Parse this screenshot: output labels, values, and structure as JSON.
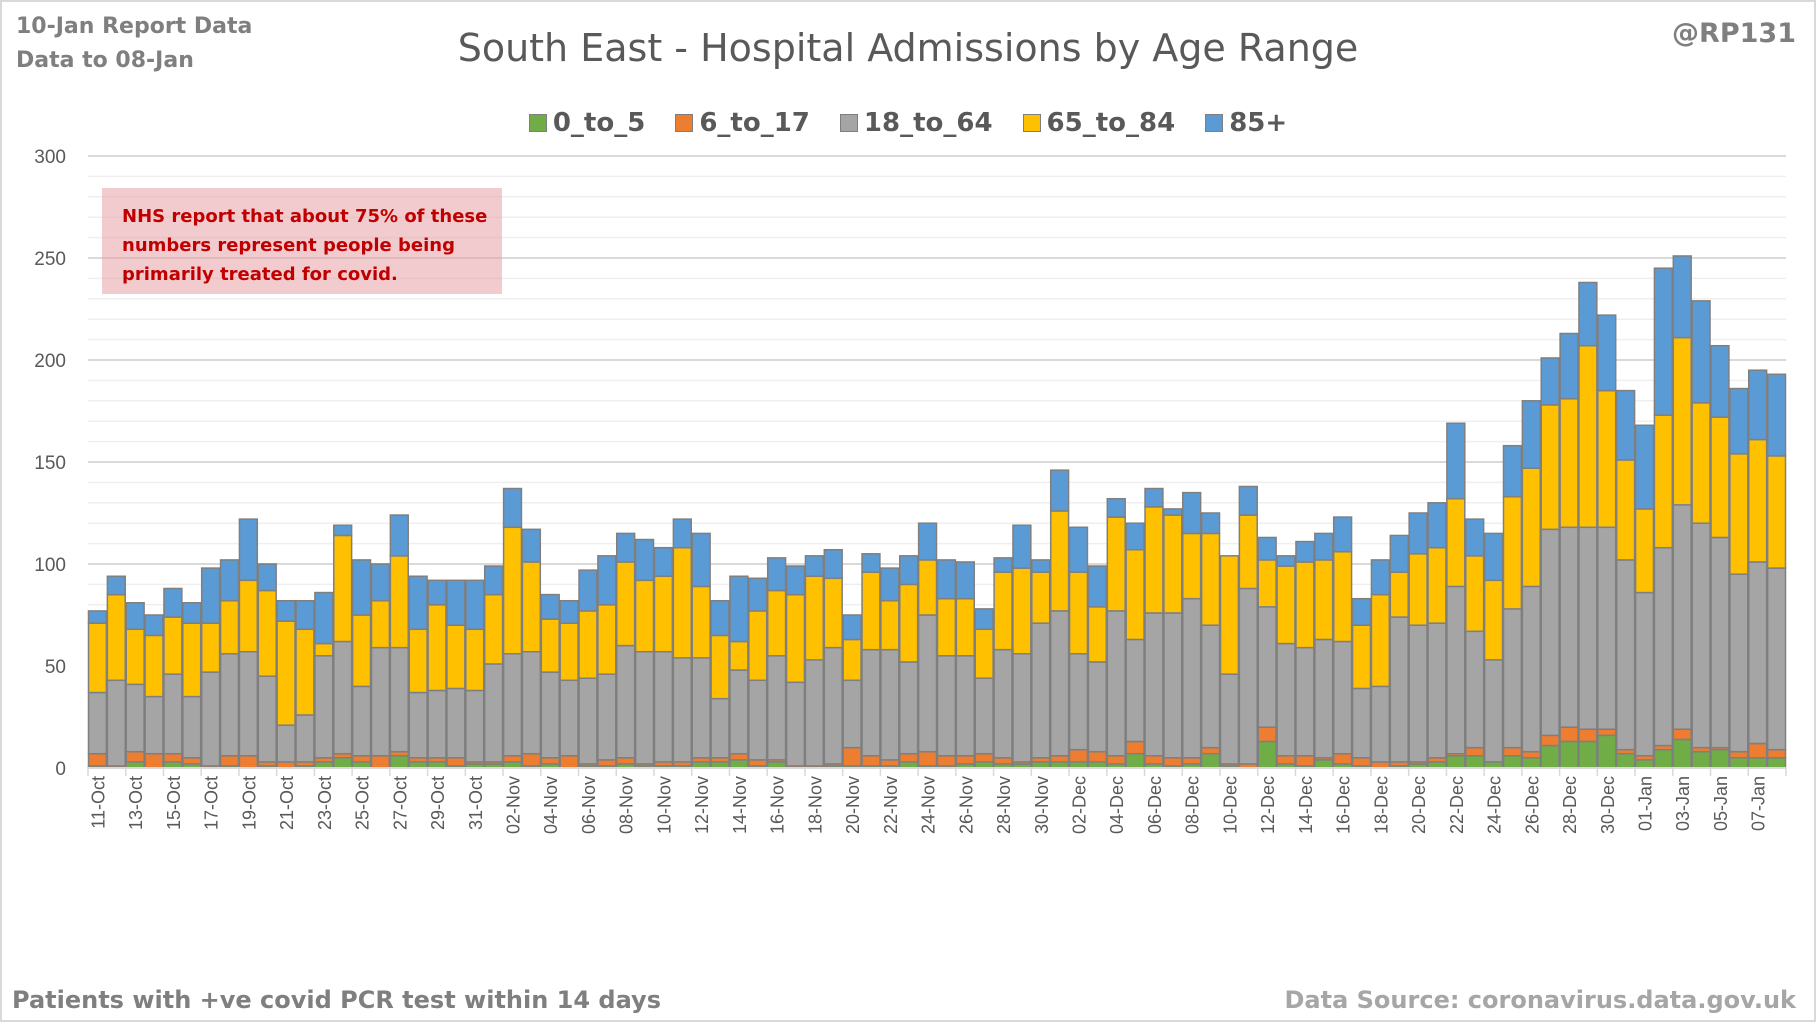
{
  "header": {
    "report_line": "10-Jan Report Data",
    "data_to_line": "Data to 08-Jan",
    "handle": "@RP131"
  },
  "annotation": {
    "lines": [
      "NHS report that about 75% of these",
      "numbers represent people being",
      "primarily treated for covid."
    ]
  },
  "footer": {
    "left": "Patients with  +ve covid PCR test within 14 days",
    "right": "Data Source: coronavirus.data.gov.uk"
  },
  "colors": {
    "0_to_5": "#70ad47",
    "6_to_17": "#ed7d31",
    "18_to_64": "#a5a5a5",
    "65_to_84": "#ffc000",
    "85+": "#5b9bd5"
  },
  "chart_data": {
    "type": "bar",
    "stacked": true,
    "title": "South East - Hospital Admissions by Age Range",
    "xlabel": "",
    "ylabel": "",
    "ylim": [
      0,
      300
    ],
    "yticks": [
      0,
      50,
      100,
      150,
      200,
      250,
      300
    ],
    "grid": true,
    "legend_position": "top",
    "categories": [
      "11-Oct",
      "12-Oct",
      "13-Oct",
      "14-Oct",
      "15-Oct",
      "16-Oct",
      "17-Oct",
      "18-Oct",
      "19-Oct",
      "20-Oct",
      "21-Oct",
      "22-Oct",
      "23-Oct",
      "24-Oct",
      "25-Oct",
      "26-Oct",
      "27-Oct",
      "28-Oct",
      "29-Oct",
      "30-Oct",
      "31-Oct",
      "01-Nov",
      "02-Nov",
      "03-Nov",
      "04-Nov",
      "05-Nov",
      "06-Nov",
      "07-Nov",
      "08-Nov",
      "09-Nov",
      "10-Nov",
      "11-Nov",
      "12-Nov",
      "13-Nov",
      "14-Nov",
      "15-Nov",
      "16-Nov",
      "17-Nov",
      "18-Nov",
      "19-Nov",
      "20-Nov",
      "21-Nov",
      "22-Nov",
      "23-Nov",
      "24-Nov",
      "25-Nov",
      "26-Nov",
      "27-Nov",
      "28-Nov",
      "29-Nov",
      "30-Nov",
      "01-Dec",
      "02-Dec",
      "03-Dec",
      "04-Dec",
      "05-Dec",
      "06-Dec",
      "07-Dec",
      "08-Dec",
      "09-Dec",
      "10-Dec",
      "11-Dec",
      "12-Dec",
      "13-Dec",
      "14-Dec",
      "15-Dec",
      "16-Dec",
      "17-Dec",
      "18-Dec",
      "19-Dec",
      "20-Dec",
      "21-Dec",
      "22-Dec",
      "23-Dec",
      "24-Dec",
      "25-Dec",
      "26-Dec",
      "27-Dec",
      "28-Dec",
      "29-Dec",
      "30-Dec",
      "31-Dec",
      "01-Jan",
      "02-Jan",
      "03-Jan",
      "04-Jan",
      "05-Jan",
      "06-Jan",
      "07-Jan",
      "08-Jan"
    ],
    "tick_labels": [
      "11-Oct",
      "13-Oct",
      "15-Oct",
      "17-Oct",
      "19-Oct",
      "21-Oct",
      "23-Oct",
      "25-Oct",
      "27-Oct",
      "29-Oct",
      "31-Oct",
      "02-Nov",
      "04-Nov",
      "06-Nov",
      "08-Nov",
      "10-Nov",
      "12-Nov",
      "14-Nov",
      "16-Nov",
      "18-Nov",
      "20-Nov",
      "22-Nov",
      "24-Nov",
      "26-Nov",
      "28-Nov",
      "30-Nov",
      "02-Dec",
      "04-Dec",
      "06-Dec",
      "08-Dec",
      "10-Dec",
      "12-Dec",
      "14-Dec",
      "16-Dec",
      "18-Dec",
      "20-Dec",
      "22-Dec",
      "24-Dec",
      "26-Dec",
      "28-Dec",
      "30-Dec",
      "01-Jan",
      "03-Jan",
      "05-Jan",
      "07-Jan"
    ],
    "series": [
      {
        "name": "0_to_5",
        "values": [
          1,
          0,
          3,
          0,
          3,
          2,
          0,
          1,
          0,
          1,
          0,
          1,
          3,
          5,
          3,
          0,
          6,
          3,
          3,
          1,
          2,
          2,
          3,
          1,
          2,
          0,
          1,
          1,
          2,
          1,
          1,
          1,
          3,
          3,
          4,
          1,
          3,
          0,
          0,
          1,
          1,
          1,
          1,
          3,
          1,
          1,
          2,
          3,
          2,
          2,
          3,
          3,
          3,
          3,
          2,
          7,
          2,
          1,
          2,
          7,
          1,
          0,
          13,
          2,
          1,
          4,
          2,
          1,
          0,
          1,
          2,
          3,
          6,
          6,
          3,
          6,
          5,
          11,
          13,
          13,
          16,
          7,
          4,
          9,
          14,
          8,
          9,
          5,
          5,
          5
        ]
      },
      {
        "name": "6_to_17",
        "values": [
          6,
          1,
          5,
          7,
          4,
          3,
          1,
          5,
          6,
          2,
          3,
          2,
          2,
          2,
          3,
          6,
          2,
          2,
          2,
          4,
          1,
          1,
          3,
          6,
          3,
          6,
          1,
          3,
          3,
          1,
          2,
          2,
          2,
          2,
          3,
          3,
          1,
          1,
          1,
          1,
          9,
          5,
          3,
          4,
          7,
          5,
          4,
          4,
          3,
          1,
          2,
          3,
          6,
          5,
          4,
          6,
          4,
          4,
          3,
          3,
          1,
          2,
          7,
          4,
          5,
          1,
          5,
          4,
          3,
          2,
          1,
          2,
          1,
          4,
          0,
          4,
          3,
          5,
          7,
          6,
          3,
          2,
          2,
          2,
          5,
          2,
          1,
          3,
          7,
          4
        ]
      },
      {
        "name": "18_to_64",
        "values": [
          30,
          42,
          33,
          28,
          39,
          30,
          46,
          50,
          51,
          42,
          18,
          23,
          50,
          55,
          34,
          53,
          51,
          32,
          33,
          34,
          35,
          48,
          50,
          50,
          42,
          37,
          42,
          42,
          55,
          55,
          54,
          51,
          49,
          29,
          41,
          39,
          51,
          41,
          52,
          57,
          33,
          52,
          54,
          45,
          67,
          49,
          49,
          37,
          53,
          53,
          66,
          71,
          47,
          44,
          71,
          50,
          70,
          71,
          78,
          60,
          44,
          86,
          59,
          55,
          53,
          58,
          55,
          34,
          37,
          71,
          67,
          66,
          82,
          57,
          50,
          68,
          81,
          101,
          98,
          99,
          99,
          93,
          80,
          97,
          110,
          110,
          103,
          87,
          89,
          89
        ]
      },
      {
        "name": "65_to_84",
        "values": [
          34,
          42,
          27,
          30,
          28,
          36,
          24,
          26,
          35,
          42,
          51,
          42,
          6,
          52,
          35,
          23,
          45,
          31,
          42,
          31,
          30,
          34,
          62,
          44,
          26,
          28,
          33,
          34,
          41,
          35,
          37,
          54,
          35,
          31,
          14,
          34,
          32,
          43,
          41,
          34,
          20,
          38,
          24,
          38,
          27,
          28,
          28,
          24,
          38,
          42,
          25,
          49,
          40,
          27,
          46,
          44,
          52,
          48,
          32,
          45,
          58,
          36,
          23,
          38,
          42,
          39,
          44,
          31,
          45,
          22,
          35,
          37,
          43,
          37,
          39,
          55,
          58,
          61,
          63,
          89,
          67,
          49,
          41,
          65,
          82,
          59,
          59,
          59,
          60,
          55
        ]
      },
      {
        "name": "85+",
        "values": [
          6,
          9,
          13,
          10,
          14,
          10,
          27,
          20,
          30,
          13,
          10,
          14,
          25,
          5,
          27,
          18,
          20,
          26,
          12,
          22,
          24,
          14,
          19,
          16,
          12,
          11,
          20,
          24,
          14,
          20,
          14,
          14,
          26,
          17,
          32,
          16,
          16,
          14,
          10,
          14,
          12,
          9,
          16,
          14,
          18,
          19,
          18,
          10,
          7,
          21,
          6,
          20,
          22,
          20,
          9,
          13,
          9,
          3,
          20,
          10,
          0,
          14,
          11,
          5,
          10,
          13,
          17,
          13,
          17,
          18,
          20,
          22,
          37,
          18,
          23,
          25,
          33,
          23,
          32,
          31,
          37,
          34,
          41,
          72,
          40,
          50,
          35,
          32,
          34,
          40
        ]
      }
    ]
  }
}
